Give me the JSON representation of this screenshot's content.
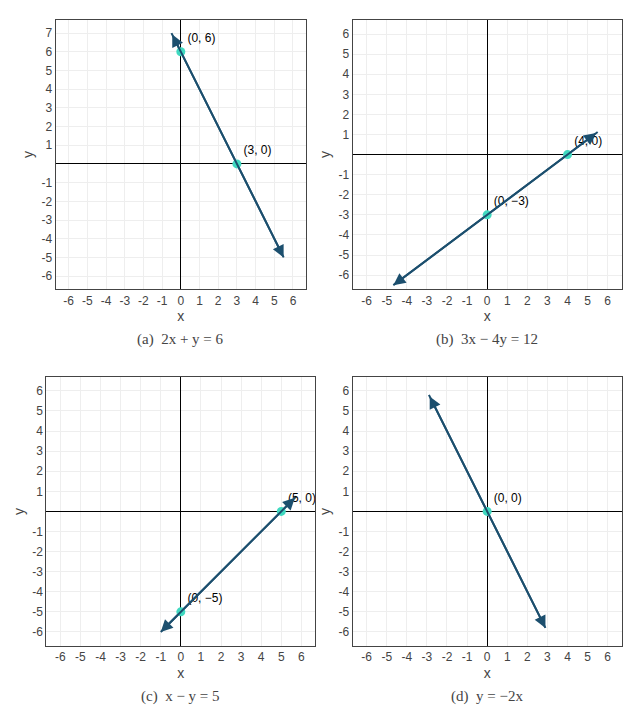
{
  "chart_data": [
    {
      "type": "line",
      "title": "(a)  2x + y = 6",
      "x_label": "x",
      "y_label": "y",
      "xlim": [
        -6.7,
        6.7
      ],
      "ylim": [
        -6.7,
        7.7
      ],
      "xticks": [
        -6,
        -5,
        -4,
        -3,
        -2,
        -1,
        0,
        1,
        2,
        3,
        4,
        5,
        6
      ],
      "yticks": [
        -6,
        -5,
        -4,
        -3,
        -2,
        -1,
        1,
        2,
        3,
        4,
        5,
        6,
        7
      ],
      "grid": true,
      "series": [
        {
          "type": "line",
          "marker": "arrow",
          "x": [
            -0.5,
            5.5
          ],
          "values": [
            7.0,
            -5.0
          ],
          "color": "#1c4f6e"
        },
        {
          "type": "scatter",
          "x": [
            0,
            3
          ],
          "values": [
            6,
            0
          ],
          "color": "#40d9c0",
          "data_labels": true,
          "value_labels": [
            "(0, 6)",
            "(3, 0)"
          ]
        }
      ]
    },
    {
      "type": "line",
      "title": "(b)  3x − 4y = 12",
      "x_label": "x",
      "y_label": "y",
      "xlim": [
        -6.7,
        6.7
      ],
      "ylim": [
        -6.7,
        6.7
      ],
      "xticks": [
        -6,
        -5,
        -4,
        -3,
        -2,
        -1,
        0,
        1,
        2,
        3,
        4,
        5,
        6
      ],
      "yticks": [
        -6,
        -5,
        -4,
        -3,
        -2,
        -1,
        1,
        2,
        3,
        4,
        5,
        6
      ],
      "grid": true,
      "series": [
        {
          "type": "line",
          "marker": "arrow",
          "x": [
            5.5,
            -4.67
          ],
          "values": [
            1.125,
            -6.5
          ],
          "color": "#1c4f6e"
        },
        {
          "type": "scatter",
          "x": [
            0,
            4
          ],
          "values": [
            -3,
            0
          ],
          "color": "#40d9c0",
          "data_labels": true,
          "value_labels": [
            "(0, −3)",
            "(4, 0)"
          ]
        }
      ]
    },
    {
      "type": "line",
      "title": "(c)  x − y = 5",
      "x_label": "x",
      "y_label": "y",
      "xlim": [
        -6.7,
        6.7
      ],
      "ylim": [
        -6.7,
        6.7
      ],
      "xticks": [
        -6,
        -5,
        -4,
        -3,
        -2,
        -1,
        0,
        1,
        2,
        3,
        4,
        5,
        6
      ],
      "yticks": [
        -6,
        -5,
        -4,
        -3,
        -2,
        -1,
        1,
        2,
        3,
        4,
        5,
        6
      ],
      "grid": true,
      "series": [
        {
          "type": "line",
          "marker": "arrow",
          "x": [
            5.75,
            -1.0
          ],
          "values": [
            0.75,
            -6.0
          ],
          "color": "#1c4f6e"
        },
        {
          "type": "scatter",
          "x": [
            0,
            5
          ],
          "values": [
            -5,
            0
          ],
          "color": "#40d9c0",
          "data_labels": true,
          "value_labels": [
            "(0, −5)",
            "(5, 0)"
          ]
        }
      ]
    },
    {
      "type": "line",
      "title": "(d)  y = −2x",
      "x_label": "x",
      "y_label": "y",
      "xlim": [
        -6.7,
        6.7
      ],
      "ylim": [
        -6.7,
        6.7
      ],
      "xticks": [
        -6,
        -5,
        -4,
        -3,
        -2,
        -1,
        0,
        1,
        2,
        3,
        4,
        5,
        6
      ],
      "yticks": [
        -6,
        -5,
        -4,
        -3,
        -2,
        -1,
        1,
        2,
        3,
        4,
        5,
        6
      ],
      "grid": true,
      "series": [
        {
          "type": "line",
          "marker": "arrow",
          "x": [
            -2.9,
            2.9
          ],
          "values": [
            5.8,
            -5.8
          ],
          "color": "#1c4f6e"
        },
        {
          "type": "scatter",
          "x": [
            0
          ],
          "values": [
            0
          ],
          "color": "#40d9c0",
          "data_labels": true,
          "value_labels": [
            "(0, 0)"
          ]
        }
      ]
    }
  ]
}
